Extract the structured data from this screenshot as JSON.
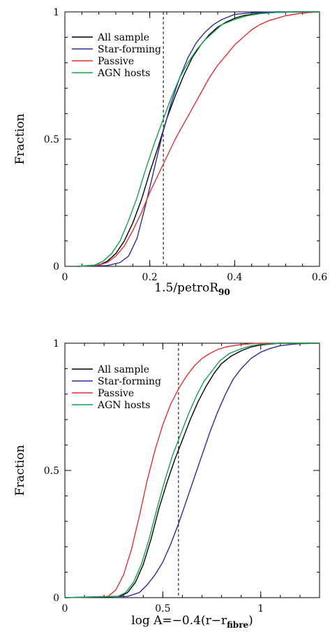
{
  "colors": {
    "all": "#000000",
    "sf": "#2b2b9a",
    "passive": "#e03030",
    "agn": "#10a050",
    "ref": "#000000"
  },
  "chart_data": [
    {
      "type": "line",
      "ylabel": "Fraction",
      "xlabel": {
        "main": "1.5/petroR",
        "sub": "90",
        "tail": ""
      },
      "xlim": [
        0,
        0.6
      ],
      "ylim": [
        0,
        1
      ],
      "xticks": [
        0,
        0.2,
        0.4,
        0.6
      ],
      "xtick_labels": [
        "0",
        "0.2",
        "0.4",
        "0.6"
      ],
      "yticks": [
        0,
        0.5,
        1
      ],
      "ytick_labels": [
        "0",
        "0.5",
        "1"
      ],
      "grid": false,
      "legend": "top-left",
      "reference_x": 0.232,
      "series": [
        {
          "name": "All sample",
          "color_key": "all",
          "x": [
            0.03,
            0.08,
            0.1,
            0.12,
            0.14,
            0.16,
            0.18,
            0.2,
            0.22,
            0.24,
            0.26,
            0.28,
            0.3,
            0.32,
            0.34,
            0.36,
            0.38,
            0.4,
            0.42,
            0.44,
            0.46,
            0.5,
            0.55,
            0.6
          ],
          "y": [
            0,
            0.005,
            0.02,
            0.05,
            0.1,
            0.17,
            0.26,
            0.37,
            0.47,
            0.58,
            0.67,
            0.75,
            0.82,
            0.87,
            0.91,
            0.94,
            0.96,
            0.975,
            0.985,
            0.99,
            0.995,
            0.998,
            1.0,
            1.0
          ]
        },
        {
          "name": "Star-forming",
          "color_key": "sf",
          "x": [
            0.03,
            0.1,
            0.13,
            0.15,
            0.17,
            0.19,
            0.21,
            0.23,
            0.25,
            0.27,
            0.29,
            0.31,
            0.33,
            0.35,
            0.37,
            0.4,
            0.43,
            0.46,
            0.5,
            0.55,
            0.6
          ],
          "y": [
            0,
            0.003,
            0.015,
            0.04,
            0.11,
            0.24,
            0.38,
            0.52,
            0.64,
            0.74,
            0.82,
            0.88,
            0.92,
            0.95,
            0.97,
            0.99,
            0.995,
            0.998,
            1.0,
            1.0,
            1.0
          ]
        },
        {
          "name": "Passive",
          "color_key": "passive",
          "x": [
            0.03,
            0.08,
            0.1,
            0.12,
            0.14,
            0.16,
            0.18,
            0.2,
            0.22,
            0.24,
            0.26,
            0.28,
            0.3,
            0.32,
            0.34,
            0.36,
            0.38,
            0.4,
            0.42,
            0.44,
            0.46,
            0.48,
            0.5,
            0.52,
            0.55,
            0.58,
            0.6
          ],
          "y": [
            0,
            0.005,
            0.015,
            0.04,
            0.08,
            0.14,
            0.21,
            0.29,
            0.36,
            0.43,
            0.5,
            0.56,
            0.62,
            0.68,
            0.74,
            0.79,
            0.83,
            0.87,
            0.9,
            0.93,
            0.95,
            0.965,
            0.975,
            0.985,
            0.993,
            0.998,
            1.0
          ]
        },
        {
          "name": "AGN hosts",
          "color_key": "agn",
          "x": [
            0.03,
            0.07,
            0.09,
            0.11,
            0.13,
            0.15,
            0.17,
            0.19,
            0.21,
            0.23,
            0.25,
            0.27,
            0.29,
            0.31,
            0.33,
            0.35,
            0.37,
            0.4,
            0.43,
            0.46,
            0.5,
            0.55,
            0.6
          ],
          "y": [
            0,
            0.005,
            0.02,
            0.05,
            0.1,
            0.18,
            0.27,
            0.38,
            0.48,
            0.57,
            0.66,
            0.74,
            0.8,
            0.85,
            0.89,
            0.92,
            0.95,
            0.97,
            0.985,
            0.993,
            0.998,
            1.0,
            1.0
          ]
        }
      ]
    },
    {
      "type": "line",
      "ylabel": "Fraction",
      "xlabel": {
        "main": "log A=−0.4(r−r",
        "sub": "fibre",
        "tail": ")"
      },
      "xlim": [
        0,
        1.3
      ],
      "ylim": [
        0,
        1
      ],
      "xticks": [
        0,
        0.5,
        1
      ],
      "xtick_labels": [
        "0",
        "0.5",
        "1"
      ],
      "yticks": [
        0,
        0.5,
        1
      ],
      "ytick_labels": [
        "0",
        "0.5",
        "1"
      ],
      "grid": false,
      "legend": "top-left",
      "reference_x": 0.58,
      "series": [
        {
          "name": "All sample",
          "color_key": "all",
          "x": [
            0.0,
            0.28,
            0.32,
            0.36,
            0.4,
            0.44,
            0.48,
            0.52,
            0.56,
            0.6,
            0.64,
            0.68,
            0.72,
            0.76,
            0.8,
            0.85,
            0.9,
            0.95,
            1.0,
            1.05,
            1.1,
            1.2,
            1.3
          ],
          "y": [
            0,
            0.005,
            0.02,
            0.06,
            0.13,
            0.23,
            0.35,
            0.45,
            0.54,
            0.62,
            0.7,
            0.77,
            0.83,
            0.88,
            0.92,
            0.95,
            0.97,
            0.985,
            0.993,
            0.997,
            1.0,
            1.0,
            1.0
          ]
        },
        {
          "name": "Star-forming",
          "color_key": "sf",
          "x": [
            0.0,
            0.32,
            0.38,
            0.42,
            0.46,
            0.5,
            0.54,
            0.58,
            0.62,
            0.66,
            0.7,
            0.74,
            0.78,
            0.82,
            0.86,
            0.9,
            0.95,
            1.0,
            1.05,
            1.1,
            1.15,
            1.2,
            1.3
          ],
          "y": [
            0,
            0.005,
            0.02,
            0.05,
            0.09,
            0.14,
            0.21,
            0.29,
            0.38,
            0.47,
            0.56,
            0.65,
            0.73,
            0.8,
            0.86,
            0.9,
            0.94,
            0.965,
            0.98,
            0.99,
            0.995,
            0.998,
            1.0
          ]
        },
        {
          "name": "Passive",
          "color_key": "passive",
          "x": [
            0.0,
            0.22,
            0.26,
            0.3,
            0.34,
            0.38,
            0.42,
            0.46,
            0.5,
            0.54,
            0.58,
            0.62,
            0.66,
            0.7,
            0.74,
            0.78,
            0.82,
            0.86,
            0.9,
            0.95,
            1.0,
            1.1,
            1.3
          ],
          "y": [
            0,
            0.005,
            0.03,
            0.09,
            0.19,
            0.32,
            0.46,
            0.58,
            0.68,
            0.76,
            0.82,
            0.87,
            0.91,
            0.94,
            0.96,
            0.975,
            0.985,
            0.99,
            0.995,
            0.998,
            1.0,
            1.0,
            1.0
          ]
        },
        {
          "name": "AGN hosts",
          "color_key": "agn",
          "x": [
            0.0,
            0.27,
            0.31,
            0.35,
            0.39,
            0.43,
            0.47,
            0.51,
            0.55,
            0.59,
            0.63,
            0.67,
            0.71,
            0.75,
            0.79,
            0.84,
            0.89,
            0.94,
            0.99,
            1.04,
            1.1,
            1.2,
            1.3
          ],
          "y": [
            0,
            0.005,
            0.02,
            0.06,
            0.13,
            0.23,
            0.35,
            0.46,
            0.56,
            0.64,
            0.72,
            0.79,
            0.85,
            0.89,
            0.93,
            0.96,
            0.975,
            0.988,
            0.995,
            0.998,
            1.0,
            1.0,
            1.0
          ]
        }
      ]
    }
  ]
}
